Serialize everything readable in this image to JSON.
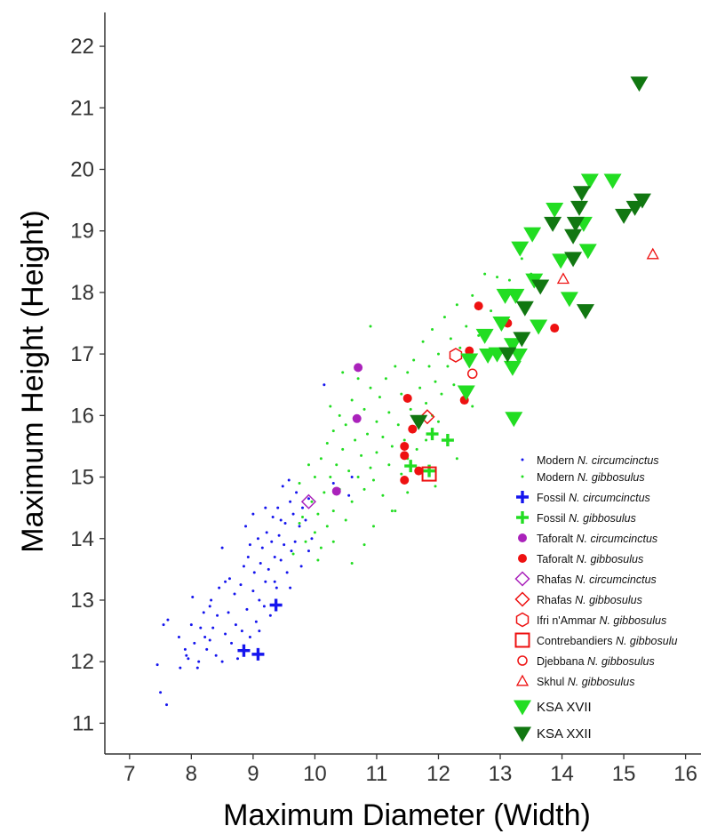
{
  "chart_data": {
    "type": "scatter",
    "xlabel": "Maximum Diameter (Width)",
    "ylabel": "Maximum Height (Height)",
    "xlim": [
      6.6,
      16.25
    ],
    "ylim": [
      10.5,
      22.55
    ],
    "x_ticks": [
      7,
      8,
      9,
      10,
      11,
      12,
      13,
      14,
      15,
      16
    ],
    "y_ticks": [
      11,
      12,
      13,
      14,
      15,
      16,
      17,
      18,
      19,
      20,
      21,
      22
    ],
    "grid": false,
    "legend_position": "bottom-right",
    "series": [
      {
        "name": "Modern N. circumcinctus",
        "label_prefix": "Modern ",
        "label_italic": "N. circumcinctus",
        "marker": "dot",
        "color": "#1515ee",
        "points": [
          [
            7.5,
            11.5
          ],
          [
            7.45,
            11.95
          ],
          [
            7.6,
            11.3
          ],
          [
            7.55,
            12.6
          ],
          [
            7.62,
            12.68
          ],
          [
            7.8,
            12.4
          ],
          [
            7.82,
            11.9
          ],
          [
            7.9,
            12.2
          ],
          [
            7.92,
            12.1
          ],
          [
            7.95,
            12.05
          ],
          [
            8.0,
            12.6
          ],
          [
            8.02,
            13.05
          ],
          [
            8.05,
            12.3
          ],
          [
            8.1,
            11.9
          ],
          [
            8.12,
            12.0
          ],
          [
            8.15,
            12.55
          ],
          [
            8.2,
            12.8
          ],
          [
            8.22,
            12.4
          ],
          [
            8.25,
            12.2
          ],
          [
            8.3,
            12.9
          ],
          [
            8.32,
            13.0
          ],
          [
            8.35,
            12.55
          ],
          [
            8.4,
            12.1
          ],
          [
            8.42,
            12.75
          ],
          [
            8.45,
            13.2
          ],
          [
            8.5,
            13.85
          ],
          [
            8.5,
            12.0
          ],
          [
            8.55,
            12.45
          ],
          [
            8.6,
            12.8
          ],
          [
            8.62,
            13.35
          ],
          [
            8.65,
            12.3
          ],
          [
            8.7,
            13.1
          ],
          [
            8.72,
            12.6
          ],
          [
            8.75,
            12.05
          ],
          [
            8.8,
            13.25
          ],
          [
            8.82,
            12.5
          ],
          [
            8.85,
            13.55
          ],
          [
            8.88,
            14.2
          ],
          [
            8.9,
            12.85
          ],
          [
            8.92,
            13.7
          ],
          [
            8.95,
            12.4
          ],
          [
            9.0,
            13.15
          ],
          [
            9.02,
            13.45
          ],
          [
            9.05,
            12.65
          ],
          [
            9.08,
            14.0
          ],
          [
            9.1,
            13.0
          ],
          [
            9.12,
            13.6
          ],
          [
            9.15,
            13.85
          ],
          [
            9.18,
            12.9
          ],
          [
            9.2,
            13.3
          ],
          [
            9.22,
            14.1
          ],
          [
            9.25,
            13.5
          ],
          [
            9.28,
            12.75
          ],
          [
            9.3,
            13.95
          ],
          [
            9.32,
            14.35
          ],
          [
            9.35,
            13.7
          ],
          [
            9.38,
            13.2
          ],
          [
            9.4,
            14.5
          ],
          [
            9.42,
            14.05
          ],
          [
            9.45,
            13.65
          ],
          [
            9.48,
            14.85
          ],
          [
            9.5,
            13.9
          ],
          [
            9.52,
            14.25
          ],
          [
            9.55,
            13.45
          ],
          [
            9.58,
            14.95
          ],
          [
            9.6,
            14.6
          ],
          [
            9.62,
            13.8
          ],
          [
            9.65,
            14.4
          ],
          [
            9.68,
            13.95
          ],
          [
            9.7,
            14.75
          ],
          [
            9.75,
            14.2
          ],
          [
            9.78,
            13.55
          ],
          [
            9.8,
            14.5
          ],
          [
            9.85,
            14.3
          ],
          [
            9.9,
            14.65
          ],
          [
            9.95,
            14.0
          ],
          [
            10.15,
            16.5
          ],
          [
            10.3,
            14.9
          ],
          [
            10.55,
            14.7
          ],
          [
            10.6,
            15.0
          ],
          [
            9.35,
            13.3
          ],
          [
            9.2,
            14.5
          ],
          [
            8.95,
            13.9
          ],
          [
            9.1,
            12.5
          ],
          [
            8.55,
            13.3
          ],
          [
            9.6,
            13.2
          ],
          [
            9.45,
            14.3
          ],
          [
            9.9,
            13.8
          ],
          [
            8.3,
            12.35
          ],
          [
            9.0,
            14.4
          ]
        ]
      },
      {
        "name": "Modern N. gibbosulus",
        "label_prefix": "Modern ",
        "label_italic": "N. gibbosulus",
        "marker": "dot",
        "color": "#22dd22",
        "points": [
          [
            9.65,
            13.75
          ],
          [
            9.75,
            14.25
          ],
          [
            9.85,
            13.95
          ],
          [
            9.95,
            14.6
          ],
          [
            10.0,
            14.1
          ],
          [
            10.0,
            15.0
          ],
          [
            10.05,
            14.4
          ],
          [
            10.1,
            13.85
          ],
          [
            10.1,
            15.3
          ],
          [
            10.15,
            14.75
          ],
          [
            10.2,
            14.2
          ],
          [
            10.2,
            15.55
          ],
          [
            10.25,
            15.0
          ],
          [
            10.3,
            14.45
          ],
          [
            10.3,
            15.75
          ],
          [
            10.35,
            15.2
          ],
          [
            10.4,
            14.8
          ],
          [
            10.4,
            16.0
          ],
          [
            10.45,
            15.45
          ],
          [
            10.5,
            14.3
          ],
          [
            10.5,
            15.85
          ],
          [
            10.55,
            15.1
          ],
          [
            10.6,
            14.6
          ],
          [
            10.6,
            16.25
          ],
          [
            10.65,
            15.6
          ],
          [
            10.7,
            15.0
          ],
          [
            10.7,
            16.6
          ],
          [
            10.75,
            15.35
          ],
          [
            10.8,
            14.8
          ],
          [
            10.8,
            16.1
          ],
          [
            10.85,
            15.7
          ],
          [
            10.9,
            15.15
          ],
          [
            10.9,
            16.45
          ],
          [
            10.95,
            14.95
          ],
          [
            11.0,
            15.9
          ],
          [
            11.0,
            15.4
          ],
          [
            11.05,
            16.3
          ],
          [
            11.1,
            14.7
          ],
          [
            11.1,
            15.65
          ],
          [
            11.15,
            16.6
          ],
          [
            11.2,
            15.2
          ],
          [
            11.2,
            16.05
          ],
          [
            11.25,
            15.5
          ],
          [
            11.3,
            14.45
          ],
          [
            11.3,
            16.8
          ],
          [
            11.35,
            15.85
          ],
          [
            11.4,
            15.05
          ],
          [
            11.4,
            16.35
          ],
          [
            11.45,
            15.6
          ],
          [
            11.5,
            16.7
          ],
          [
            11.5,
            15.3
          ],
          [
            11.55,
            16.1
          ],
          [
            11.6,
            15.8
          ],
          [
            11.6,
            16.9
          ],
          [
            11.65,
            15.45
          ],
          [
            11.7,
            16.45
          ],
          [
            11.7,
            15.95
          ],
          [
            11.75,
            17.2
          ],
          [
            11.8,
            16.2
          ],
          [
            11.8,
            15.6
          ],
          [
            11.85,
            16.8
          ],
          [
            11.9,
            16.0
          ],
          [
            11.9,
            17.4
          ],
          [
            11.95,
            16.55
          ],
          [
            12.0,
            17.0
          ],
          [
            12.0,
            15.9
          ],
          [
            12.05,
            16.35
          ],
          [
            12.1,
            17.6
          ],
          [
            12.15,
            16.8
          ],
          [
            12.2,
            17.25
          ],
          [
            12.25,
            16.5
          ],
          [
            12.3,
            17.8
          ],
          [
            12.35,
            17.1
          ],
          [
            12.45,
            17.45
          ],
          [
            12.55,
            17.95
          ],
          [
            12.65,
            17.3
          ],
          [
            12.75,
            18.3
          ],
          [
            12.85,
            17.7
          ],
          [
            12.95,
            18.25
          ],
          [
            13.05,
            17.55
          ],
          [
            13.15,
            18.2
          ],
          [
            13.25,
            18.0
          ],
          [
            13.35,
            18.55
          ],
          [
            13.5,
            18.3
          ],
          [
            10.9,
            17.45
          ],
          [
            10.45,
            16.7
          ],
          [
            10.25,
            16.15
          ],
          [
            9.9,
            15.2
          ],
          [
            9.75,
            14.9
          ],
          [
            11.25,
            14.45
          ],
          [
            10.3,
            13.95
          ],
          [
            10.6,
            13.6
          ],
          [
            10.95,
            14.2
          ],
          [
            11.5,
            14.75
          ],
          [
            12.3,
            15.3
          ],
          [
            12.55,
            16.15
          ],
          [
            11.95,
            14.85
          ],
          [
            10.8,
            13.9
          ],
          [
            10.05,
            13.65
          ],
          [
            9.8,
            14.35
          ]
        ]
      },
      {
        "name": "Fossil N. circumcinctus",
        "label_prefix": "Fossil ",
        "label_italic": "N. circumcinctus",
        "marker": "cross",
        "color": "#1515ee",
        "points": [
          [
            8.85,
            12.18
          ],
          [
            9.08,
            12.12
          ],
          [
            9.37,
            12.92
          ]
        ]
      },
      {
        "name": "Fossil N. gibbosulus",
        "label_prefix": "Fossil ",
        "label_italic": "N. gibbosulus",
        "marker": "cross",
        "color": "#22dd22",
        "points": [
          [
            11.55,
            15.18
          ],
          [
            11.85,
            15.1
          ],
          [
            11.9,
            15.7
          ],
          [
            12.15,
            15.6
          ]
        ]
      },
      {
        "name": "Taforalt N. circumcinctus",
        "label_prefix": "Taforalt ",
        "label_italic": "N. circumcinctus",
        "marker": "filled-circle",
        "color": "#aa22bb",
        "points": [
          [
            10.7,
            16.78
          ],
          [
            10.68,
            15.95
          ],
          [
            10.35,
            14.77
          ]
        ]
      },
      {
        "name": "Taforalt N. gibbosulus",
        "label_prefix": "Taforalt ",
        "label_italic": "N. gibbosulus",
        "marker": "filled-circle",
        "color": "#ee1111",
        "points": [
          [
            11.45,
            14.95
          ],
          [
            11.45,
            15.35
          ],
          [
            11.45,
            15.5
          ],
          [
            11.5,
            16.28
          ],
          [
            11.58,
            15.78
          ],
          [
            11.68,
            15.1
          ],
          [
            12.42,
            16.25
          ],
          [
            12.5,
            17.05
          ],
          [
            12.65,
            17.78
          ],
          [
            13.12,
            17.5
          ],
          [
            13.88,
            17.42
          ]
        ]
      },
      {
        "name": "Rhafas N. circumcinctus",
        "label_prefix": "Rhafas ",
        "label_italic": "N. circumcinctus",
        "marker": "open-diamond",
        "color": "#aa22bb",
        "points": [
          [
            9.9,
            14.6
          ]
        ]
      },
      {
        "name": "Rhafas N. gibbosulus",
        "label_prefix": "Rhafas ",
        "label_italic": "N. gibbosulus",
        "marker": "open-diamond",
        "color": "#ee1111",
        "points": [
          [
            11.82,
            15.98
          ]
        ]
      },
      {
        "name": "Ifri n'Ammar N. gibbosulus",
        "label_prefix": "Ifri n'Ammar ",
        "label_italic": "N. gibbosulus",
        "marker": "open-hexagon",
        "color": "#ee1111",
        "points": [
          [
            12.28,
            16.98
          ]
        ]
      },
      {
        "name": "Contrebandiers N. gibbosulus",
        "label_prefix": "Contrebandiers ",
        "label_italic": "N. gibbosulu",
        "marker": "open-square",
        "color": "#ee1111",
        "points": [
          [
            11.85,
            15.05
          ]
        ]
      },
      {
        "name": "Djebbana N. gibbosulus",
        "label_prefix": "Djebbana ",
        "label_italic": "N. gibbosulus",
        "marker": "open-circle",
        "color": "#ee1111",
        "points": [
          [
            12.55,
            16.68
          ]
        ]
      },
      {
        "name": "Skhul N. gibbosulus",
        "label_prefix": "Skhul ",
        "label_italic": "N. gibbosulus",
        "marker": "open-triangle",
        "color": "#ee1111",
        "points": [
          [
            14.02,
            18.22
          ],
          [
            15.47,
            18.62
          ]
        ]
      },
      {
        "name": "KSA XVII",
        "label_prefix": "KSA XVII",
        "label_italic": "",
        "marker": "triangle-down",
        "color": "#22dd22",
        "points": [
          [
            12.45,
            16.38
          ],
          [
            12.5,
            16.9
          ],
          [
            12.75,
            17.3
          ],
          [
            12.8,
            16.98
          ],
          [
            12.95,
            17.0
          ],
          [
            13.02,
            17.5
          ],
          [
            13.08,
            17.95
          ],
          [
            13.2,
            17.15
          ],
          [
            13.2,
            16.78
          ],
          [
            13.25,
            17.95
          ],
          [
            13.3,
            16.98
          ],
          [
            13.22,
            15.95
          ],
          [
            13.32,
            18.72
          ],
          [
            13.52,
            18.95
          ],
          [
            13.55,
            18.2
          ],
          [
            13.62,
            17.45
          ],
          [
            13.88,
            19.35
          ],
          [
            13.98,
            18.52
          ],
          [
            14.12,
            17.9
          ],
          [
            14.35,
            19.12
          ],
          [
            14.42,
            18.68
          ],
          [
            14.45,
            19.82
          ],
          [
            14.82,
            19.82
          ]
        ]
      },
      {
        "name": "KSA XXII",
        "label_prefix": "KSA XXII",
        "label_italic": "",
        "marker": "triangle-down",
        "color": "#117711",
        "points": [
          [
            11.68,
            15.9
          ],
          [
            13.12,
            17.0
          ],
          [
            13.35,
            17.25
          ],
          [
            13.4,
            17.75
          ],
          [
            13.65,
            18.1
          ],
          [
            13.85,
            19.12
          ],
          [
            14.18,
            18.92
          ],
          [
            14.22,
            19.12
          ],
          [
            14.28,
            19.38
          ],
          [
            14.32,
            19.62
          ],
          [
            14.38,
            17.7
          ],
          [
            14.18,
            18.55
          ],
          [
            15.0,
            19.25
          ],
          [
            15.18,
            19.38
          ],
          [
            15.3,
            19.5
          ],
          [
            15.25,
            21.4
          ]
        ]
      }
    ]
  }
}
